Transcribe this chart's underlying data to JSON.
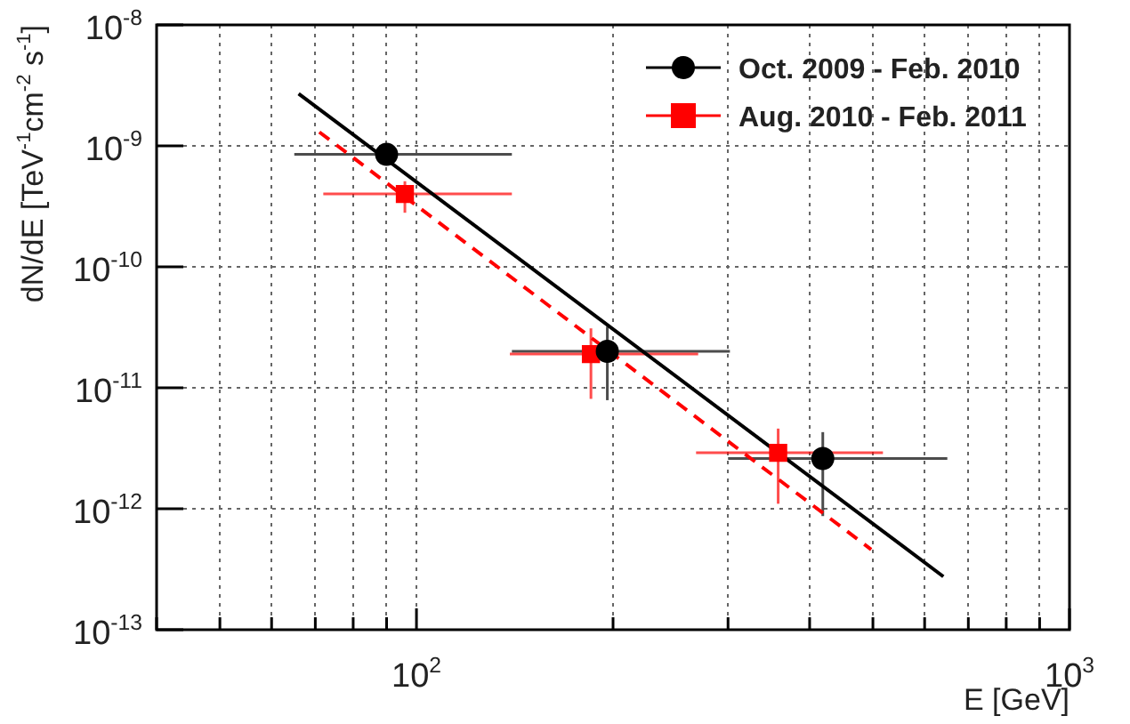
{
  "chart_data": {
    "type": "scatter",
    "xlabel": "E [GeV]",
    "ylabel": "dN/dE [TeV$^{-1}$cm$^{-2}$ s$^{-1}$]",
    "log": "xy",
    "grid": true,
    "legend": "top right",
    "xlim": [
      40,
      1000
    ],
    "ylim": [
      1e-13,
      1e-08
    ],
    "xticks": [
      {
        "value": 40,
        "label": null
      },
      {
        "value": 50,
        "label": null
      },
      {
        "value": 60,
        "label": null
      },
      {
        "value": 70,
        "label": null
      },
      {
        "value": 80,
        "label": null
      },
      {
        "value": 90,
        "label": null
      },
      {
        "value": 100,
        "label": "10$^{2}$"
      },
      {
        "value": 200,
        "label": null
      },
      {
        "value": 300,
        "label": null
      },
      {
        "value": 400,
        "label": null
      },
      {
        "value": 500,
        "label": null
      },
      {
        "value": 600,
        "label": null
      },
      {
        "value": 700,
        "label": null
      },
      {
        "value": 800,
        "label": null
      },
      {
        "value": 900,
        "label": null
      },
      {
        "value": 1000,
        "label": "10$^{3}$"
      }
    ],
    "yticks": [
      {
        "value": 1e-13,
        "label": "10$^{-13}$"
      },
      {
        "value": 1e-12,
        "label": "10$^{-12}$"
      },
      {
        "value": 1e-11,
        "label": "10$^{-11}$"
      },
      {
        "value": 1e-10,
        "label": "10$^{-10}$"
      },
      {
        "value": 1e-09,
        "label": "10$^{-9}$"
      },
      {
        "value": 1e-08,
        "label": "10$^{-8}$"
      }
    ],
    "series": [
      {
        "name": "Oct. 2009 - Feb. 2010",
        "color": "#000000",
        "marker": "circle",
        "x": [
          90,
          196,
          419
        ],
        "values": [
          8.5e-10,
          2e-11,
          2.6e-12
        ],
        "errors": [
          [
            7.5e-10,
            9.5e-10
          ],
          [
            7.9e-12,
            3.2e-11
          ],
          [
            8.7e-13,
            4.3e-12
          ]
        ],
        "xerrors": [
          [
            65,
            140
          ],
          [
            140,
            302
          ],
          [
            300,
            650
          ]
        ]
      },
      {
        "name": "Aug. 2010 - Feb. 2011",
        "color": "#ff0000",
        "marker": "square",
        "x": [
          96,
          185,
          358
        ],
        "values": [
          4e-10,
          1.9e-11,
          2.9e-12
        ],
        "errors": [
          [
            2.8e-10,
            5.1e-10
          ],
          [
            8.1e-12,
            3.1e-11
          ],
          [
            1.1e-12,
            4.6e-12
          ]
        ],
        "xerrors": [
          [
            72,
            140
          ],
          [
            139,
            270
          ],
          [
            268,
            518
          ]
        ]
      },
      {
        "type": "line",
        "color": "#000000",
        "marker": "none",
        "line_style": "solid",
        "x": [
          66,
          641
        ],
        "values": [
          2.7e-09,
          2.75e-13
        ]
      },
      {
        "type": "line",
        "color": "#ff0000",
        "marker": "none",
        "line_style": "dashed",
        "x": [
          71,
          497
        ],
        "values": [
          1.3e-09,
          4.6e-13
        ]
      }
    ]
  }
}
